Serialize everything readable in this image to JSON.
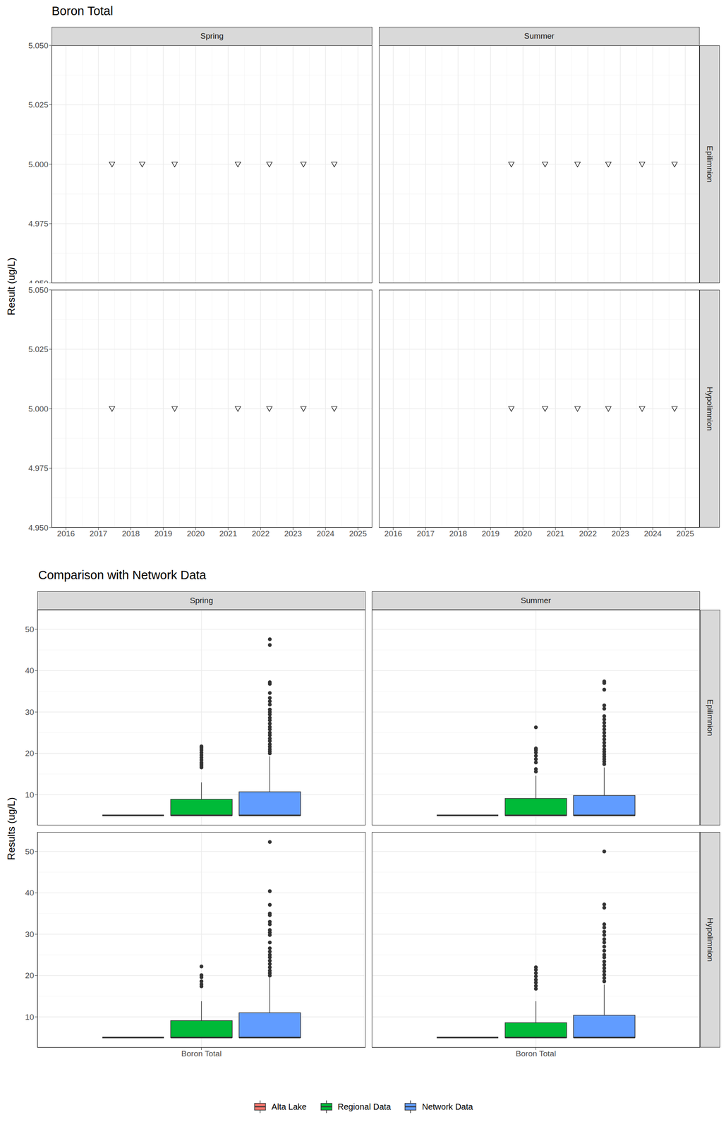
{
  "chart_data": [
    {
      "type": "scatter",
      "title": "Boron Total",
      "y_label": "Result (ug/L)",
      "facet_columns": [
        "Spring",
        "Summer"
      ],
      "facet_rows": [
        "Epilimnion",
        "Hypolimnion"
      ],
      "xlim": [
        2015.56,
        2025.44
      ],
      "xticks": [
        2016,
        2017,
        2018,
        2019,
        2020,
        2021,
        2022,
        2023,
        2024,
        2025
      ],
      "ylim": [
        4.95,
        5.05
      ],
      "yticks": [
        {
          "value": 4.95,
          "label": "4.950"
        },
        {
          "value": 4.975,
          "label": "4.975"
        },
        {
          "value": 5,
          "label": "5.000"
        },
        {
          "value": 5.025,
          "label": "5.025"
        },
        {
          "value": 5.05,
          "label": "5.050"
        }
      ],
      "grid": true,
      "marker": "triangle-down",
      "color": "#000000",
      "panels": [
        {
          "column": "Spring",
          "row": "Epilimnion",
          "x": [
            2017.42,
            2018.35,
            2019.35,
            2021.3,
            2022.27,
            2023.32,
            2024.27
          ],
          "values": [
            5,
            5,
            5,
            5,
            5,
            5,
            5
          ]
        },
        {
          "column": "Summer",
          "row": "Epilimnion",
          "x": [
            2019.64,
            2020.68,
            2021.68,
            2022.63,
            2023.67,
            2024.67
          ],
          "values": [
            5,
            5,
            5,
            5,
            5,
            5
          ]
        },
        {
          "column": "Spring",
          "row": "Hypolimnion",
          "x": [
            2017.42,
            2019.35,
            2021.3,
            2022.27,
            2023.32,
            2024.27
          ],
          "values": [
            5,
            5,
            5,
            5,
            5,
            5
          ]
        },
        {
          "column": "Summer",
          "row": "Hypolimnion",
          "x": [
            2019.64,
            2020.68,
            2021.68,
            2022.63,
            2023.67,
            2024.67
          ],
          "values": [
            5,
            5,
            5,
            5,
            5,
            5
          ]
        }
      ]
    },
    {
      "type": "boxplot",
      "title": "Comparison with Network Data",
      "y_label": "Results (ug/L)",
      "categories": [
        "Boron Total"
      ],
      "facet_columns": [
        "Spring",
        "Summer"
      ],
      "facet_rows": [
        "Epilimnion",
        "Hypolimnion"
      ],
      "ylim": [
        2.6,
        54.7
      ],
      "yticks": [
        10,
        20,
        30,
        40,
        50
      ],
      "grid": true,
      "legend": "bottom",
      "series": [
        {
          "name": "Alta Lake",
          "color": "#F8766D"
        },
        {
          "name": "Regional Data",
          "color": "#00BA38"
        },
        {
          "name": "Network Data",
          "color": "#619CFF"
        }
      ],
      "panels": [
        {
          "column": "Spring",
          "row": "Epilimnion",
          "boxes": [
            {
              "min": 5,
              "q1": 5,
              "median": 5,
              "q3": 5,
              "max": 5,
              "outliers": []
            },
            {
              "min": 5,
              "q1": 5,
              "median": 5,
              "q3": 8.9,
              "max": 13,
              "outliers": [
                16.6,
                17.0,
                17.4,
                17.8,
                18.4,
                19.0,
                19.6,
                20.2,
                20.8,
                21.3,
                21.7
              ]
            },
            {
              "min": 5,
              "q1": 5,
              "median": 5,
              "q3": 10.7,
              "max": 19.3,
              "outliers": [
                20,
                20.5,
                21,
                21.6,
                22.2,
                23,
                23.6,
                24.4,
                25,
                25.8,
                26.4,
                27.2,
                28,
                28.6,
                29.4,
                30,
                30.6,
                31.8,
                32.6,
                33.4,
                34.6,
                36.8,
                37.2,
                46.2,
                47.6
              ]
            }
          ]
        },
        {
          "column": "Summer",
          "row": "Epilimnion",
          "boxes": [
            {
              "min": 5,
              "q1": 5,
              "median": 5,
              "q3": 5,
              "max": 5,
              "outliers": []
            },
            {
              "min": 5,
              "q1": 5,
              "median": 5,
              "q3": 9.1,
              "max": 14.6,
              "outliers": [
                15.6,
                16.2,
                17.8,
                18.6,
                19.4,
                20.2,
                20.8,
                21.2,
                26.3
              ]
            },
            {
              "min": 5,
              "q1": 5,
              "median": 5,
              "q3": 9.8,
              "max": 16.6,
              "outliers": [
                17.4,
                18,
                18.6,
                19.2,
                19.8,
                20.4,
                21,
                21.8,
                22.6,
                23.4,
                24.2,
                25,
                25.8,
                26.6,
                27.4,
                28.2,
                29,
                30.8,
                31.6,
                35.4,
                37,
                37.4
              ]
            }
          ]
        },
        {
          "column": "Spring",
          "row": "Hypolimnion",
          "boxes": [
            {
              "min": 5,
              "q1": 5,
              "median": 5,
              "q3": 5,
              "max": 5,
              "outliers": []
            },
            {
              "min": 5,
              "q1": 5,
              "median": 5,
              "q3": 9.1,
              "max": 13.8,
              "outliers": [
                17.4,
                17.9,
                18.6,
                19.6,
                20.1,
                22.2
              ]
            },
            {
              "min": 5,
              "q1": 5,
              "median": 5,
              "q3": 11,
              "max": 19.6,
              "outliers": [
                20,
                20.6,
                21.2,
                22,
                22.8,
                23.6,
                24.4,
                25,
                25.8,
                26.6,
                28,
                29.8,
                30.4,
                31,
                32.4,
                33,
                34.6,
                35,
                37.1,
                40.4,
                52.3
              ]
            }
          ]
        },
        {
          "column": "Summer",
          "row": "Hypolimnion",
          "boxes": [
            {
              "min": 5,
              "q1": 5,
              "median": 5,
              "q3": 5,
              "max": 5,
              "outliers": []
            },
            {
              "min": 5,
              "q1": 5,
              "median": 5,
              "q3": 8.6,
              "max": 13.8,
              "outliers": [
                16.8,
                17.5,
                18.3,
                19,
                19.8,
                20.6,
                21.4,
                22
              ]
            },
            {
              "min": 5,
              "q1": 5,
              "median": 5,
              "q3": 10.4,
              "max": 17.8,
              "outliers": [
                18.6,
                19.4,
                20.2,
                21,
                21.8,
                22.6,
                23.4,
                24.4,
                25,
                26,
                27,
                28,
                28.8,
                29.8,
                30.6,
                31.6,
                32.4,
                36.4,
                37.2,
                50
              ]
            }
          ]
        }
      ]
    }
  ]
}
